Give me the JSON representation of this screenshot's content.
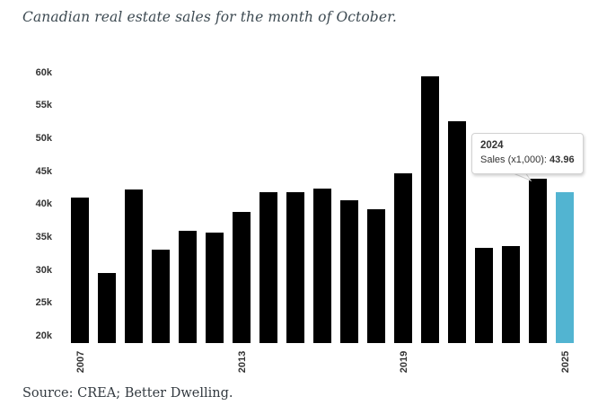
{
  "page": {
    "title": "Canadian real estate sales for the month of October.",
    "source": "Source: CREA; Better Dwelling."
  },
  "chart_data": {
    "type": "bar",
    "title": "Canadian real estate sales for the month of October.",
    "series_name": "Sales (x1,000)",
    "x": [
      2007,
      2008,
      2009,
      2010,
      2011,
      2012,
      2013,
      2014,
      2015,
      2016,
      2017,
      2018,
      2019,
      2020,
      2021,
      2022,
      2023,
      2024,
      2025
    ],
    "values": [
      41.1,
      29.7,
      42.4,
      33.2,
      36.1,
      35.8,
      38.9,
      41.9,
      42.0,
      42.5,
      40.7,
      39.4,
      44.8,
      59.6,
      52.8,
      33.5,
      33.7,
      43.96,
      42.0
    ],
    "ylim": [
      20,
      62
    ],
    "grid": false,
    "legend": "none",
    "yticks": [
      {
        "value": 60,
        "label": "60k"
      },
      {
        "value": 55,
        "label": "55k"
      },
      {
        "value": 50,
        "label": "50k"
      },
      {
        "value": 45,
        "label": "45k"
      },
      {
        "value": 40,
        "label": "40k"
      },
      {
        "value": 35,
        "label": "35k"
      },
      {
        "value": 30,
        "label": "30k"
      },
      {
        "value": 25,
        "label": "25k"
      },
      {
        "value": 20,
        "label": "20k"
      }
    ],
    "xticks": [
      "2007",
      "2013",
      "2019",
      "2025"
    ],
    "xtick_years": [
      2007,
      2013,
      2019,
      2025
    ],
    "bar_color": "#000000",
    "highlight_color": "#52b4d1",
    "highlight_year": 2025,
    "tooltip": {
      "year": "2024",
      "series_label": "Sales (x1,000):",
      "value": "43.96"
    }
  }
}
